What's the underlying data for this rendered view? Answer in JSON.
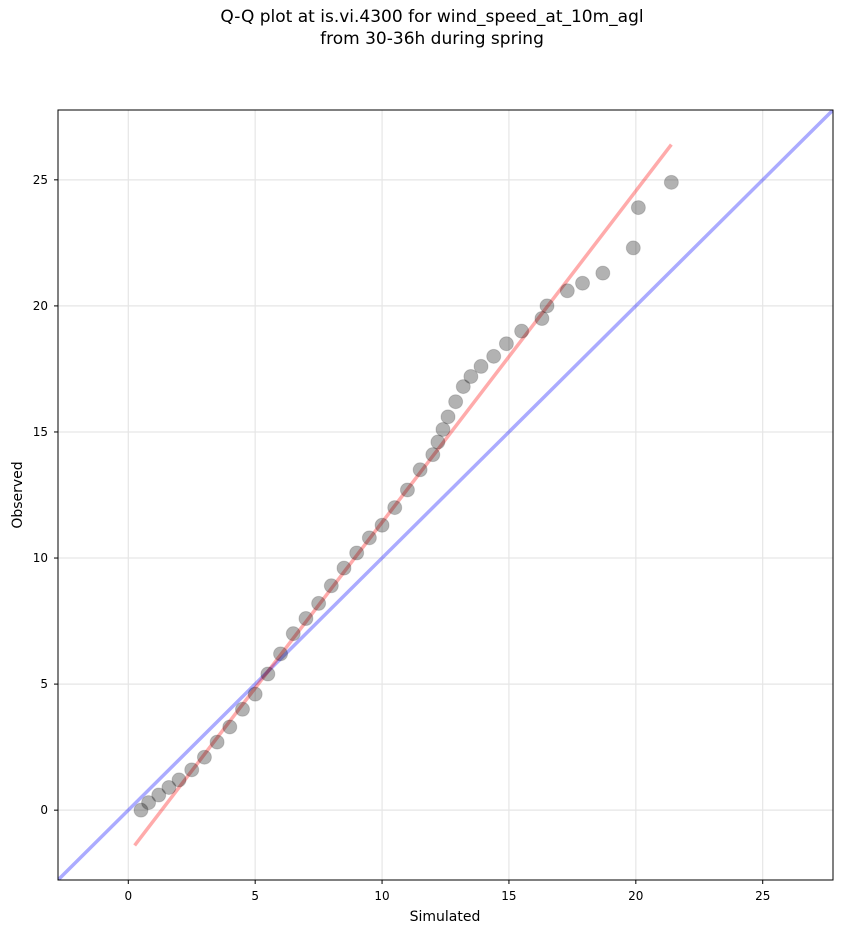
{
  "chart_data": {
    "type": "scatter",
    "title": [
      "Q-Q plot at is.vi.4300 for wind_speed_at_10m_agl",
      "from 30-36h during spring"
    ],
    "x_label": "Simulated",
    "y_label": "Observed",
    "xlim": [
      -2.77,
      27.77
    ],
    "ylim": [
      -2.77,
      27.77
    ],
    "xticks": [
      0,
      5,
      10,
      15,
      20,
      25
    ],
    "yticks": [
      0,
      5,
      10,
      15,
      20,
      25
    ],
    "grid": true,
    "color": "#000000",
    "x": [
      0.5,
      0.8,
      1.2,
      1.6,
      2.0,
      2.5,
      3.0,
      3.5,
      4.0,
      4.5,
      5.0,
      5.5,
      6.0,
      6.5,
      7.0,
      7.5,
      8.0,
      8.5,
      9.0,
      9.5,
      10.0,
      10.5,
      11.0,
      11.5,
      12.0,
      12.2,
      12.4,
      12.6,
      12.9,
      13.2,
      13.5,
      13.9,
      14.4,
      14.9,
      15.5,
      16.3,
      16.5,
      17.3,
      17.9,
      18.7,
      19.9,
      20.1,
      21.4
    ],
    "values": [
      0.0,
      0.3,
      0.6,
      0.9,
      1.2,
      1.6,
      2.1,
      2.7,
      3.3,
      4.0,
      4.6,
      5.4,
      6.2,
      7.0,
      7.6,
      8.2,
      8.9,
      9.6,
      10.2,
      10.8,
      11.3,
      12.0,
      12.7,
      13.5,
      14.1,
      14.6,
      15.1,
      15.6,
      16.2,
      16.8,
      17.2,
      17.6,
      18.0,
      18.5,
      19.0,
      19.5,
      20.0,
      20.6,
      20.9,
      21.3,
      22.3,
      23.9,
      24.9
    ],
    "reference_lines": [
      {
        "color": "#0000ff",
        "x": [
          -2.77,
          27.77
        ],
        "values": [
          -2.77,
          27.77
        ]
      },
      {
        "color": "#ff0000",
        "x": [
          0.25,
          21.4
        ],
        "values": [
          -1.4,
          26.4
        ]
      }
    ]
  }
}
